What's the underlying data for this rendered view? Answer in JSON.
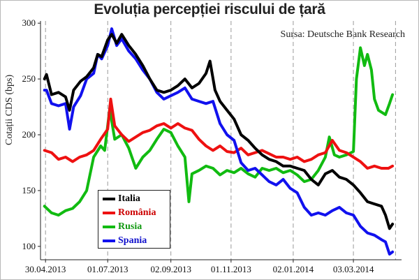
{
  "chart_data": {
    "type": "line",
    "title": "Evoluția percepției riscului de țară",
    "source": "Sursa: Deutsche Bank Research",
    "ylabel": "Cotații CDS (bps)",
    "xlabel": "",
    "ylim": [
      88,
      302
    ],
    "yticks": [
      100,
      150,
      200,
      250,
      300
    ],
    "x_range": [
      "2013-04-25",
      "2014-04-20"
    ],
    "x_ticks": [
      {
        "date": "2013-04-30",
        "label": "30.04.2013"
      },
      {
        "date": "2013-07-01",
        "label": "01.07.2013"
      },
      {
        "date": "2013-09-02",
        "label": "02.09.2013"
      },
      {
        "date": "2013-11-01",
        "label": "01.11.2013"
      },
      {
        "date": "2014-01-02",
        "label": "02.01.2014"
      },
      {
        "date": "2014-03-03",
        "label": "03.03.2014"
      }
    ],
    "grid": "vertical dashed",
    "legend_position": "bottom-left",
    "series": [
      {
        "name": "Italia",
        "color": "#000000",
        "points": [
          [
            "2013-04-29",
            250
          ],
          [
            "2013-05-01",
            254
          ],
          [
            "2013-05-06",
            236
          ],
          [
            "2013-05-13",
            238
          ],
          [
            "2013-05-20",
            234
          ],
          [
            "2013-05-24",
            222
          ],
          [
            "2013-05-28",
            240
          ],
          [
            "2013-06-04",
            248
          ],
          [
            "2013-06-10",
            252
          ],
          [
            "2013-06-17",
            260
          ],
          [
            "2013-06-21",
            272
          ],
          [
            "2013-06-25",
            270
          ],
          [
            "2013-07-01",
            285
          ],
          [
            "2013-07-05",
            290
          ],
          [
            "2013-07-10",
            282
          ],
          [
            "2013-07-15",
            290
          ],
          [
            "2013-07-22",
            280
          ],
          [
            "2013-07-29",
            272
          ],
          [
            "2013-08-05",
            262
          ],
          [
            "2013-08-12",
            250
          ],
          [
            "2013-08-19",
            240
          ],
          [
            "2013-08-26",
            238
          ],
          [
            "2013-09-02",
            240
          ],
          [
            "2013-09-09",
            244
          ],
          [
            "2013-09-16",
            250
          ],
          [
            "2013-09-23",
            242
          ],
          [
            "2013-09-30",
            246
          ],
          [
            "2013-10-07",
            255
          ],
          [
            "2013-10-11",
            266
          ],
          [
            "2013-10-16",
            240
          ],
          [
            "2013-10-21",
            230
          ],
          [
            "2013-10-28",
            222
          ],
          [
            "2013-11-04",
            214
          ],
          [
            "2013-11-11",
            200
          ],
          [
            "2013-11-18",
            195
          ],
          [
            "2013-11-25",
            188
          ],
          [
            "2013-12-02",
            182
          ],
          [
            "2013-12-09",
            178
          ],
          [
            "2013-12-16",
            176
          ],
          [
            "2013-12-23",
            172
          ],
          [
            "2013-12-30",
            172
          ],
          [
            "2014-01-06",
            170
          ],
          [
            "2014-01-13",
            168
          ],
          [
            "2014-01-20",
            160
          ],
          [
            "2014-01-27",
            155
          ],
          [
            "2014-02-03",
            165
          ],
          [
            "2014-02-10",
            168
          ],
          [
            "2014-02-17",
            162
          ],
          [
            "2014-02-24",
            160
          ],
          [
            "2014-03-03",
            155
          ],
          [
            "2014-03-10",
            148
          ],
          [
            "2014-03-17",
            140
          ],
          [
            "2014-03-24",
            138
          ],
          [
            "2014-03-31",
            136
          ],
          [
            "2014-04-04",
            128
          ],
          [
            "2014-04-08",
            116
          ],
          [
            "2014-04-11",
            120
          ]
        ]
      },
      {
        "name": "România",
        "color": "#ee1111",
        "points": [
          [
            "2013-04-29",
            186
          ],
          [
            "2013-05-06",
            184
          ],
          [
            "2013-05-13",
            178
          ],
          [
            "2013-05-20",
            180
          ],
          [
            "2013-05-27",
            176
          ],
          [
            "2013-06-03",
            180
          ],
          [
            "2013-06-10",
            182
          ],
          [
            "2013-06-17",
            186
          ],
          [
            "2013-06-24",
            196
          ],
          [
            "2013-07-01",
            205
          ],
          [
            "2013-07-04",
            232
          ],
          [
            "2013-07-08",
            208
          ],
          [
            "2013-07-15",
            200
          ],
          [
            "2013-07-22",
            194
          ],
          [
            "2013-07-29",
            198
          ],
          [
            "2013-08-05",
            202
          ],
          [
            "2013-08-12",
            204
          ],
          [
            "2013-08-19",
            208
          ],
          [
            "2013-08-26",
            210
          ],
          [
            "2013-09-02",
            206
          ],
          [
            "2013-09-09",
            210
          ],
          [
            "2013-09-16",
            206
          ],
          [
            "2013-09-23",
            204
          ],
          [
            "2013-09-30",
            196
          ],
          [
            "2013-10-07",
            190
          ],
          [
            "2013-10-14",
            186
          ],
          [
            "2013-10-21",
            190
          ],
          [
            "2013-10-28",
            185
          ],
          [
            "2013-11-04",
            184
          ],
          [
            "2013-11-11",
            188
          ],
          [
            "2013-11-18",
            182
          ],
          [
            "2013-11-25",
            184
          ],
          [
            "2013-12-02",
            186
          ],
          [
            "2013-12-09",
            183
          ],
          [
            "2013-12-16",
            180
          ],
          [
            "2013-12-23",
            180
          ],
          [
            "2013-12-30",
            178
          ],
          [
            "2014-01-06",
            180
          ],
          [
            "2014-01-13",
            176
          ],
          [
            "2014-01-20",
            178
          ],
          [
            "2014-01-27",
            182
          ],
          [
            "2014-02-03",
            184
          ],
          [
            "2014-02-10",
            195
          ],
          [
            "2014-02-17",
            186
          ],
          [
            "2014-02-24",
            184
          ],
          [
            "2014-03-03",
            180
          ],
          [
            "2014-03-10",
            176
          ],
          [
            "2014-03-17",
            170
          ],
          [
            "2014-03-24",
            172
          ],
          [
            "2014-03-31",
            170
          ],
          [
            "2014-04-07",
            170
          ],
          [
            "2014-04-11",
            172
          ]
        ]
      },
      {
        "name": "Rusia",
        "color": "#11bb11",
        "points": [
          [
            "2013-04-29",
            136
          ],
          [
            "2013-05-06",
            130
          ],
          [
            "2013-05-13",
            128
          ],
          [
            "2013-05-20",
            132
          ],
          [
            "2013-05-27",
            134
          ],
          [
            "2013-06-03",
            140
          ],
          [
            "2013-06-10",
            150
          ],
          [
            "2013-06-17",
            180
          ],
          [
            "2013-06-24",
            190
          ],
          [
            "2013-06-28",
            186
          ],
          [
            "2013-07-03",
            223
          ],
          [
            "2013-07-08",
            196
          ],
          [
            "2013-07-15",
            200
          ],
          [
            "2013-07-22",
            188
          ],
          [
            "2013-07-29",
            170
          ],
          [
            "2013-08-05",
            180
          ],
          [
            "2013-08-12",
            186
          ],
          [
            "2013-08-19",
            196
          ],
          [
            "2013-08-26",
            205
          ],
          [
            "2013-09-02",
            202
          ],
          [
            "2013-09-09",
            190
          ],
          [
            "2013-09-16",
            180
          ],
          [
            "2013-09-20",
            140
          ],
          [
            "2013-09-23",
            165
          ],
          [
            "2013-09-30",
            168
          ],
          [
            "2013-10-07",
            172
          ],
          [
            "2013-10-14",
            170
          ],
          [
            "2013-10-21",
            164
          ],
          [
            "2013-10-28",
            168
          ],
          [
            "2013-11-04",
            166
          ],
          [
            "2013-11-11",
            170
          ],
          [
            "2013-11-18",
            165
          ],
          [
            "2013-11-25",
            162
          ],
          [
            "2013-12-02",
            170
          ],
          [
            "2013-12-09",
            168
          ],
          [
            "2013-12-16",
            170
          ],
          [
            "2013-12-23",
            166
          ],
          [
            "2013-12-30",
            168
          ],
          [
            "2014-01-06",
            164
          ],
          [
            "2014-01-13",
            158
          ],
          [
            "2014-01-20",
            160
          ],
          [
            "2014-01-27",
            168
          ],
          [
            "2014-02-03",
            180
          ],
          [
            "2014-02-07",
            198
          ],
          [
            "2014-02-12",
            182
          ],
          [
            "2014-02-17",
            180
          ],
          [
            "2014-02-24",
            182
          ],
          [
            "2014-03-03",
            185
          ],
          [
            "2014-03-06",
            250
          ],
          [
            "2014-03-10",
            278
          ],
          [
            "2014-03-14",
            262
          ],
          [
            "2014-03-17",
            272
          ],
          [
            "2014-03-21",
            258
          ],
          [
            "2014-03-24",
            232
          ],
          [
            "2014-03-28",
            222
          ],
          [
            "2014-04-04",
            218
          ],
          [
            "2014-04-08",
            228
          ],
          [
            "2014-04-11",
            236
          ]
        ]
      },
      {
        "name": "Spania",
        "color": "#1111ee",
        "points": [
          [
            "2013-04-29",
            240
          ],
          [
            "2013-05-01",
            240
          ],
          [
            "2013-05-06",
            228
          ],
          [
            "2013-05-13",
            226
          ],
          [
            "2013-05-20",
            228
          ],
          [
            "2013-05-24",
            205
          ],
          [
            "2013-05-28",
            225
          ],
          [
            "2013-06-04",
            235
          ],
          [
            "2013-06-10",
            250
          ],
          [
            "2013-06-17",
            255
          ],
          [
            "2013-06-21",
            272
          ],
          [
            "2013-06-25",
            268
          ],
          [
            "2013-07-01",
            280
          ],
          [
            "2013-07-05",
            295
          ],
          [
            "2013-07-10",
            280
          ],
          [
            "2013-07-15",
            286
          ],
          [
            "2013-07-22",
            275
          ],
          [
            "2013-07-29",
            268
          ],
          [
            "2013-08-05",
            258
          ],
          [
            "2013-08-12",
            250
          ],
          [
            "2013-08-19",
            238
          ],
          [
            "2013-08-26",
            232
          ],
          [
            "2013-09-02",
            235
          ],
          [
            "2013-09-09",
            238
          ],
          [
            "2013-09-16",
            242
          ],
          [
            "2013-09-23",
            232
          ],
          [
            "2013-09-30",
            230
          ],
          [
            "2013-10-07",
            228
          ],
          [
            "2013-10-14",
            230
          ],
          [
            "2013-10-21",
            210
          ],
          [
            "2013-10-28",
            200
          ],
          [
            "2013-11-04",
            195
          ],
          [
            "2013-11-11",
            175
          ],
          [
            "2013-11-18",
            168
          ],
          [
            "2013-11-25",
            170
          ],
          [
            "2013-12-02",
            164
          ],
          [
            "2013-12-09",
            158
          ],
          [
            "2013-12-16",
            155
          ],
          [
            "2013-12-23",
            160
          ],
          [
            "2013-12-30",
            152
          ],
          [
            "2014-01-06",
            148
          ],
          [
            "2014-01-13",
            135
          ],
          [
            "2014-01-20",
            128
          ],
          [
            "2014-01-27",
            130
          ],
          [
            "2014-02-03",
            128
          ],
          [
            "2014-02-10",
            132
          ],
          [
            "2014-02-17",
            135
          ],
          [
            "2014-02-24",
            130
          ],
          [
            "2014-03-03",
            128
          ],
          [
            "2014-03-10",
            118
          ],
          [
            "2014-03-17",
            112
          ],
          [
            "2014-03-24",
            110
          ],
          [
            "2014-03-31",
            106
          ],
          [
            "2014-04-04",
            104
          ],
          [
            "2014-04-08",
            93
          ],
          [
            "2014-04-11",
            95
          ]
        ]
      }
    ]
  }
}
